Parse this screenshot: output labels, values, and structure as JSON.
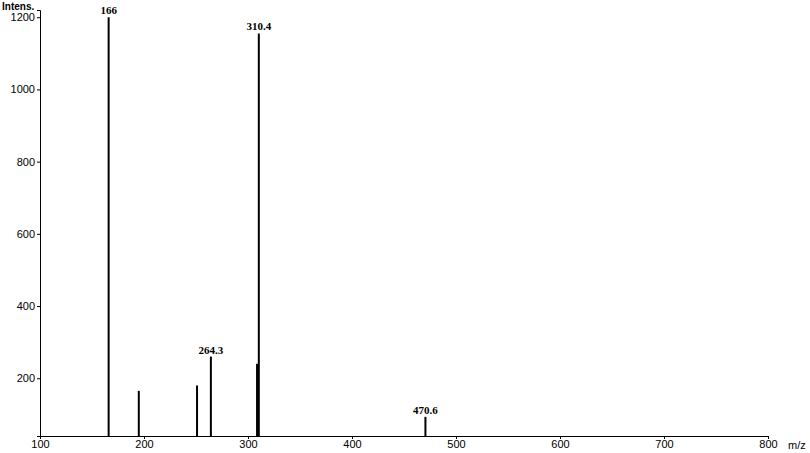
{
  "chart_data": {
    "type": "stem",
    "y_label": "Intens.",
    "x_label": "m/z",
    "x": [
      166,
      195,
      251,
      264.3,
      308.7,
      310.4,
      470.6
    ],
    "values": [
      1200,
      165,
      180,
      260,
      240,
      1155,
      93
    ],
    "labels": [
      "166",
      null,
      null,
      "264.3",
      null,
      "310.4",
      "470.6"
    ],
    "color": "#000000",
    "xlim": [
      100,
      800
    ],
    "xticks": [
      100,
      200,
      300,
      400,
      500,
      600,
      700,
      800
    ],
    "ylim": [
      40,
      1220
    ],
    "yticks": [
      200,
      400,
      600,
      800,
      1000,
      1200
    ],
    "grid": false
  }
}
